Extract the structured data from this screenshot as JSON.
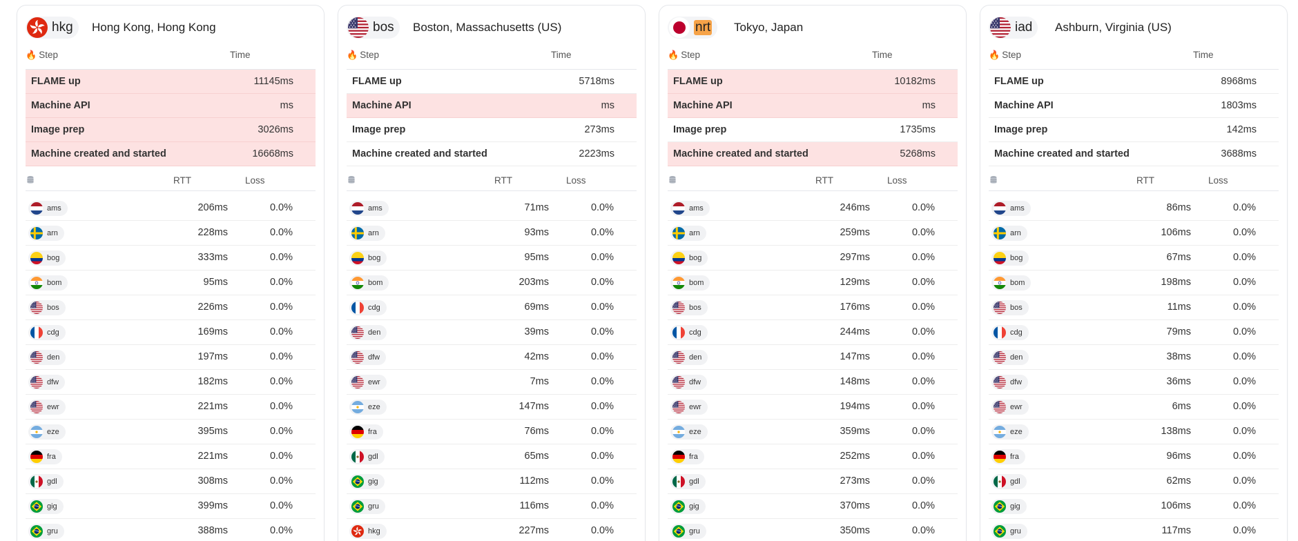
{
  "headers": {
    "step": "Step",
    "time": "Time",
    "rtt": "RTT",
    "loss": "Loss"
  },
  "cards": [
    {
      "code": "hkg",
      "name": "Hong Kong, Hong Kong",
      "flag": "hk-flag",
      "highlight": false,
      "steps": [
        {
          "label": "FLAME up",
          "time": "11145ms",
          "slow": true
        },
        {
          "label": "Machine API",
          "time": "ms",
          "slow": true
        },
        {
          "label": "Image prep",
          "time": "3026ms",
          "slow": true
        },
        {
          "label": "Machine created and started",
          "time": "16668ms",
          "slow": true
        }
      ],
      "pings": [
        {
          "code": "ams",
          "flag": "nl-flag",
          "rtt": "206ms",
          "loss": "0.0%"
        },
        {
          "code": "arn",
          "flag": "se-flag",
          "rtt": "228ms",
          "loss": "0.0%"
        },
        {
          "code": "bog",
          "flag": "co-flag",
          "rtt": "333ms",
          "loss": "0.0%"
        },
        {
          "code": "bom",
          "flag": "in-flag",
          "rtt": "95ms",
          "loss": "0.0%"
        },
        {
          "code": "bos",
          "flag": "us-flag",
          "rtt": "226ms",
          "loss": "0.0%"
        },
        {
          "code": "cdg",
          "flag": "fr-flag",
          "rtt": "169ms",
          "loss": "0.0%"
        },
        {
          "code": "den",
          "flag": "us-flag",
          "rtt": "197ms",
          "loss": "0.0%"
        },
        {
          "code": "dfw",
          "flag": "us-flag",
          "rtt": "182ms",
          "loss": "0.0%"
        },
        {
          "code": "ewr",
          "flag": "us-flag",
          "rtt": "221ms",
          "loss": "0.0%"
        },
        {
          "code": "eze",
          "flag": "ar-flag",
          "rtt": "395ms",
          "loss": "0.0%"
        },
        {
          "code": "fra",
          "flag": "de-flag",
          "rtt": "221ms",
          "loss": "0.0%"
        },
        {
          "code": "gdl",
          "flag": "mx-flag",
          "rtt": "308ms",
          "loss": "0.0%"
        },
        {
          "code": "gig",
          "flag": "br-flag",
          "rtt": "399ms",
          "loss": "0.0%"
        },
        {
          "code": "gru",
          "flag": "br-flag",
          "rtt": "388ms",
          "loss": "0.0%"
        }
      ]
    },
    {
      "code": "bos",
      "name": "Boston, Massachusetts (US)",
      "flag": "us-flag",
      "highlight": false,
      "steps": [
        {
          "label": "FLAME up",
          "time": "5718ms",
          "slow": false
        },
        {
          "label": "Machine API",
          "time": "ms",
          "slow": true
        },
        {
          "label": "Image prep",
          "time": "273ms",
          "slow": false
        },
        {
          "label": "Machine created and started",
          "time": "2223ms",
          "slow": false
        }
      ],
      "pings": [
        {
          "code": "ams",
          "flag": "nl-flag",
          "rtt": "71ms",
          "loss": "0.0%"
        },
        {
          "code": "arn",
          "flag": "se-flag",
          "rtt": "93ms",
          "loss": "0.0%"
        },
        {
          "code": "bog",
          "flag": "co-flag",
          "rtt": "95ms",
          "loss": "0.0%"
        },
        {
          "code": "bom",
          "flag": "in-flag",
          "rtt": "203ms",
          "loss": "0.0%"
        },
        {
          "code": "cdg",
          "flag": "fr-flag",
          "rtt": "69ms",
          "loss": "0.0%"
        },
        {
          "code": "den",
          "flag": "us-flag",
          "rtt": "39ms",
          "loss": "0.0%"
        },
        {
          "code": "dfw",
          "flag": "us-flag",
          "rtt": "42ms",
          "loss": "0.0%"
        },
        {
          "code": "ewr",
          "flag": "us-flag",
          "rtt": "7ms",
          "loss": "0.0%"
        },
        {
          "code": "eze",
          "flag": "ar-flag",
          "rtt": "147ms",
          "loss": "0.0%"
        },
        {
          "code": "fra",
          "flag": "de-flag",
          "rtt": "76ms",
          "loss": "0.0%"
        },
        {
          "code": "gdl",
          "flag": "mx-flag",
          "rtt": "65ms",
          "loss": "0.0%"
        },
        {
          "code": "gig",
          "flag": "br-flag",
          "rtt": "112ms",
          "loss": "0.0%"
        },
        {
          "code": "gru",
          "flag": "br-flag",
          "rtt": "116ms",
          "loss": "0.0%"
        },
        {
          "code": "hkg",
          "flag": "hk-flag",
          "rtt": "227ms",
          "loss": "0.0%"
        }
      ]
    },
    {
      "code": "nrt",
      "name": "Tokyo, Japan",
      "flag": "jp-flag",
      "highlight": true,
      "steps": [
        {
          "label": "FLAME up",
          "time": "10182ms",
          "slow": true
        },
        {
          "label": "Machine API",
          "time": "ms",
          "slow": true
        },
        {
          "label": "Image prep",
          "time": "1735ms",
          "slow": false
        },
        {
          "label": "Machine created and started",
          "time": "5268ms",
          "slow": true
        }
      ],
      "pings": [
        {
          "code": "ams",
          "flag": "nl-flag",
          "rtt": "246ms",
          "loss": "0.0%"
        },
        {
          "code": "arn",
          "flag": "se-flag",
          "rtt": "259ms",
          "loss": "0.0%"
        },
        {
          "code": "bog",
          "flag": "co-flag",
          "rtt": "297ms",
          "loss": "0.0%"
        },
        {
          "code": "bom",
          "flag": "in-flag",
          "rtt": "129ms",
          "loss": "0.0%"
        },
        {
          "code": "bos",
          "flag": "us-flag",
          "rtt": "176ms",
          "loss": "0.0%"
        },
        {
          "code": "cdg",
          "flag": "fr-flag",
          "rtt": "244ms",
          "loss": "0.0%"
        },
        {
          "code": "den",
          "flag": "us-flag",
          "rtt": "147ms",
          "loss": "0.0%"
        },
        {
          "code": "dfw",
          "flag": "us-flag",
          "rtt": "148ms",
          "loss": "0.0%"
        },
        {
          "code": "ewr",
          "flag": "us-flag",
          "rtt": "194ms",
          "loss": "0.0%"
        },
        {
          "code": "eze",
          "flag": "ar-flag",
          "rtt": "359ms",
          "loss": "0.0%"
        },
        {
          "code": "fra",
          "flag": "de-flag",
          "rtt": "252ms",
          "loss": "0.0%"
        },
        {
          "code": "gdl",
          "flag": "mx-flag",
          "rtt": "273ms",
          "loss": "0.0%"
        },
        {
          "code": "gig",
          "flag": "br-flag",
          "rtt": "370ms",
          "loss": "0.0%"
        },
        {
          "code": "gru",
          "flag": "br-flag",
          "rtt": "350ms",
          "loss": "0.0%"
        }
      ]
    },
    {
      "code": "iad",
      "name": "Ashburn, Virginia (US)",
      "flag": "us-flag",
      "highlight": false,
      "steps": [
        {
          "label": "FLAME up",
          "time": "8968ms",
          "slow": false
        },
        {
          "label": "Machine API",
          "time": "1803ms",
          "slow": false
        },
        {
          "label": "Image prep",
          "time": "142ms",
          "slow": false
        },
        {
          "label": "Machine created and started",
          "time": "3688ms",
          "slow": false
        }
      ],
      "pings": [
        {
          "code": "ams",
          "flag": "nl-flag",
          "rtt": "86ms",
          "loss": "0.0%"
        },
        {
          "code": "arn",
          "flag": "se-flag",
          "rtt": "106ms",
          "loss": "0.0%"
        },
        {
          "code": "bog",
          "flag": "co-flag",
          "rtt": "67ms",
          "loss": "0.0%"
        },
        {
          "code": "bom",
          "flag": "in-flag",
          "rtt": "198ms",
          "loss": "0.0%"
        },
        {
          "code": "bos",
          "flag": "us-flag",
          "rtt": "11ms",
          "loss": "0.0%"
        },
        {
          "code": "cdg",
          "flag": "fr-flag",
          "rtt": "79ms",
          "loss": "0.0%"
        },
        {
          "code": "den",
          "flag": "us-flag",
          "rtt": "38ms",
          "loss": "0.0%"
        },
        {
          "code": "dfw",
          "flag": "us-flag",
          "rtt": "36ms",
          "loss": "0.0%"
        },
        {
          "code": "ewr",
          "flag": "us-flag",
          "rtt": "6ms",
          "loss": "0.0%"
        },
        {
          "code": "eze",
          "flag": "ar-flag",
          "rtt": "138ms",
          "loss": "0.0%"
        },
        {
          "code": "fra",
          "flag": "de-flag",
          "rtt": "96ms",
          "loss": "0.0%"
        },
        {
          "code": "gdl",
          "flag": "mx-flag",
          "rtt": "62ms",
          "loss": "0.0%"
        },
        {
          "code": "gig",
          "flag": "br-flag",
          "rtt": "106ms",
          "loss": "0.0%"
        },
        {
          "code": "gru",
          "flag": "br-flag",
          "rtt": "117ms",
          "loss": "0.0%"
        }
      ]
    }
  ]
}
